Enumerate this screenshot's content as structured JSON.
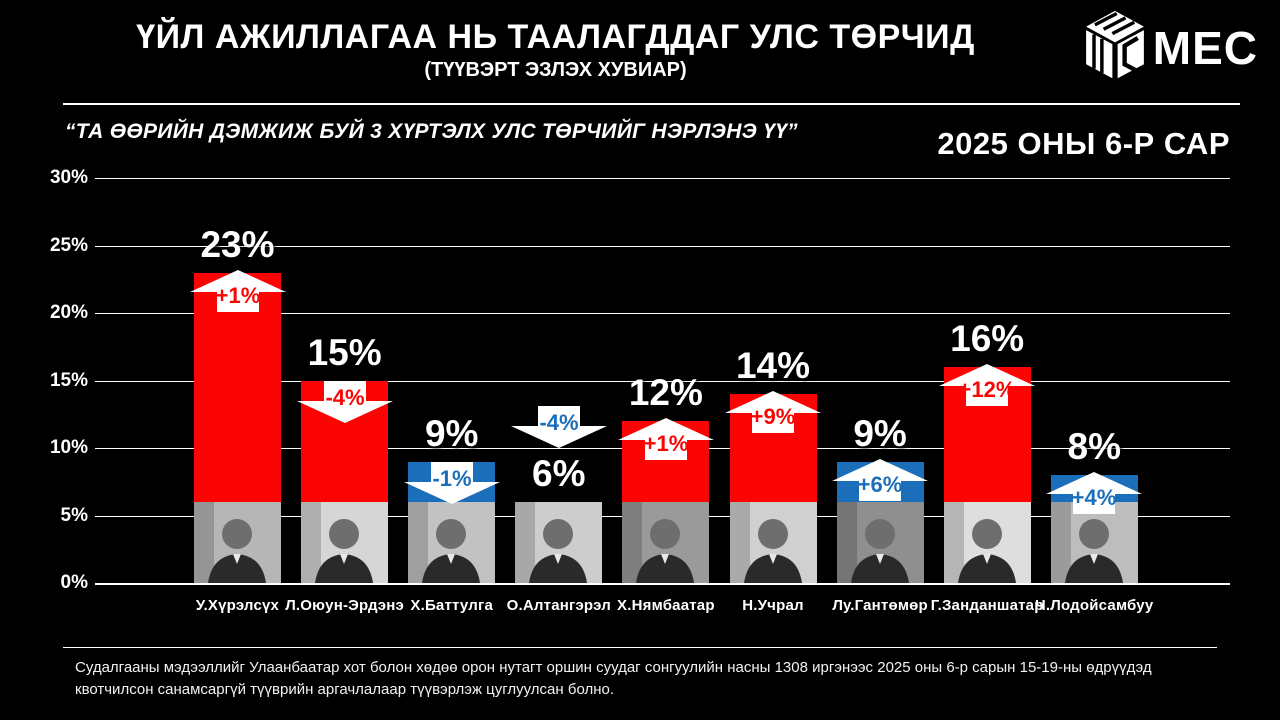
{
  "header": {
    "title": "ҮЙЛ АЖИЛЛАГАА НЬ ТААЛАГДДАГ УЛС ТӨРЧИД",
    "subtitle": "(ТҮҮВЭРТ ЭЗЛЭХ ХУВИАР)",
    "logo_text": "MEC"
  },
  "question": "“ТА ӨӨРИЙН ДЭМЖИЖ БУЙ 3 ХҮРТЭЛХ УЛС ТӨРЧИЙГ НЭРЛЭНЭ ҮҮ”",
  "period": "2025 ОНЫ 6-Р САР",
  "footnote": "Судалгааны мэдээллийг Улаанбаатар хот болон хөдөө орон нутагт оршин суудаг сонгуулийн насны 1308 иргэнээс 2025 оны 6-р сарын 15-19-ны өдрүүдэд квотчилсон санамсаргүй түүврийн аргачлалаар түүвэрлэж цуглуулсан болно.",
  "colors": {
    "background": "#000000",
    "red": "#FB0404",
    "blue": "#1B6FBA",
    "grid": "#FFFFFF"
  },
  "chart_data": {
    "type": "bar",
    "title": "ҮЙЛ АЖИЛЛАГАА НЬ ТААЛАГДДАГ УЛС ТӨРЧИД (ТҮҮВЭРТ ЭЗЛЭХ ХУВИАР)",
    "ylabel": "",
    "xlabel": "",
    "ylim": [
      0,
      30
    ],
    "yticks": [
      "0%",
      "5%",
      "10%",
      "15%",
      "20%",
      "25%",
      "30%"
    ],
    "grid": true,
    "categories": [
      "У.Хүрэлсүх",
      "Л.Оюун-Эрдэнэ",
      "Х.Баттулга",
      "О.Алтангэрэл",
      "Х.Нямбаатар",
      "Н.Учрал",
      "Лу.Гантөмөр",
      "Г.Занданшатар",
      "Ч.Лодойсамбуу"
    ],
    "values": [
      23,
      15,
      9,
      6,
      12,
      14,
      9,
      16,
      8
    ],
    "bars": [
      {
        "name": "У.Хүрэлсүх",
        "value": 23,
        "label": "23%",
        "change": "+1%",
        "direction": "up",
        "color": "red"
      },
      {
        "name": "Л.Оюун-Эрдэнэ",
        "value": 15,
        "label": "15%",
        "change": "-4%",
        "direction": "down",
        "color": "red"
      },
      {
        "name": "Х.Баттулга",
        "value": 9,
        "label": "9%",
        "change": "-1%",
        "direction": "down",
        "color": "blue"
      },
      {
        "name": "О.Алтангэрэл",
        "value": 6,
        "label": "6%",
        "change": "-4%",
        "direction": "down",
        "color": "blue",
        "no_fill": true,
        "floating_arrow": true
      },
      {
        "name": "Х.Нямбаатар",
        "value": 12,
        "label": "12%",
        "change": "+1%",
        "direction": "up",
        "color": "red"
      },
      {
        "name": "Н.Учрал",
        "value": 14,
        "label": "14%",
        "change": "+9%",
        "direction": "up",
        "color": "red"
      },
      {
        "name": "Лу.Гантөмөр",
        "value": 9,
        "label": "9%",
        "change": "+6%",
        "direction": "up",
        "color": "blue"
      },
      {
        "name": "Г.Занданшатар",
        "value": 16,
        "label": "16%",
        "change": "+12%",
        "direction": "up",
        "color": "red"
      },
      {
        "name": "Ч.Лодойсамбуу",
        "value": 8,
        "label": "8%",
        "change": "+4%",
        "direction": "up",
        "color": "blue"
      }
    ],
    "photo_band_pct": 6
  }
}
